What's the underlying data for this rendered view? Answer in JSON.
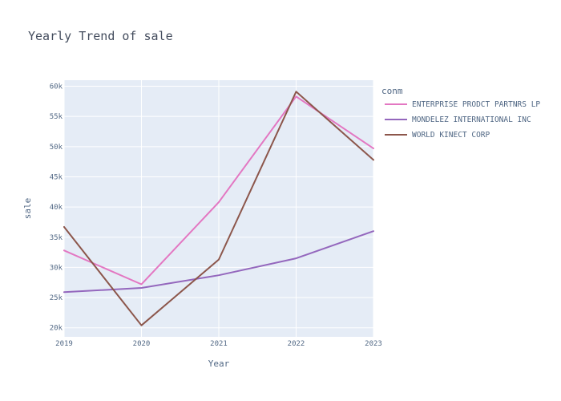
{
  "chart_data": {
    "type": "line",
    "title": "Yearly Trend of sale",
    "xlabel": "Year",
    "ylabel": "sale",
    "x": [
      2019,
      2020,
      2021,
      2022,
      2023
    ],
    "x_tick_labels": [
      "2019",
      "2020",
      "2021",
      "2022",
      "2023"
    ],
    "xlim": [
      2019,
      2023
    ],
    "ylim": [
      18500,
      61000
    ],
    "y_ticks": [
      20000,
      25000,
      30000,
      35000,
      40000,
      45000,
      50000,
      55000,
      60000
    ],
    "y_tick_labels": [
      "20k",
      "25k",
      "30k",
      "35k",
      "40k",
      "45k",
      "50k",
      "55k",
      "60k"
    ],
    "grid": true,
    "legend_title": "conm",
    "legend_position": "right",
    "series": [
      {
        "name": "ENTERPRISE PRODCT PARTNRS LP",
        "color": "#e377c2",
        "values": [
          32800,
          27200,
          40800,
          58300,
          49700
        ]
      },
      {
        "name": "MONDELEZ INTERNATIONAL INC",
        "color": "#9467bd",
        "values": [
          25900,
          26600,
          28700,
          31500,
          36000
        ]
      },
      {
        "name": "WORLD KINECT CORP",
        "color": "#8c564b",
        "values": [
          36700,
          20400,
          31300,
          59100,
          47800
        ]
      }
    ]
  }
}
